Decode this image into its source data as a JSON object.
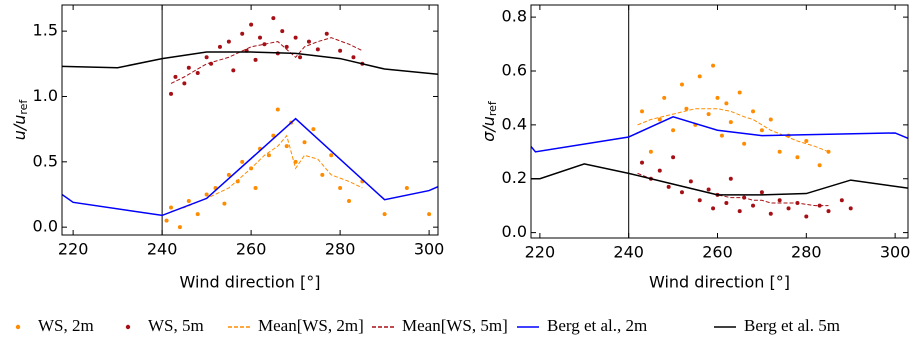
{
  "chart_data": [
    {
      "type": "scatter",
      "xlabel": "Wind direction [°]",
      "ylabel": "u/u",
      "ylabel_sub": "ref",
      "xlim": [
        217.5,
        302
      ],
      "ylim": [
        -0.06,
        1.7
      ],
      "xticks": [
        220,
        240,
        260,
        280,
        300
      ],
      "yticks": [
        {
          "value": 0,
          "label": "0.0"
        },
        {
          "value": 0.5,
          "label": "0.5"
        },
        {
          "value": 1,
          "label": "1.0"
        },
        {
          "value": 1.5,
          "label": "1.5"
        }
      ],
      "vline": 240,
      "series": [
        {
          "name": "WS, 2m",
          "color": "#ff8c00",
          "kind": "scatter",
          "x": [
            241,
            242,
            244,
            246,
            248,
            250,
            252,
            254,
            255,
            257,
            258,
            260,
            261,
            262,
            264,
            265,
            266,
            268,
            269,
            270,
            272,
            274,
            276,
            278,
            280,
            282,
            285,
            290,
            295,
            300
          ],
          "values": [
            0.05,
            0.15,
            0.0,
            0.2,
            0.1,
            0.25,
            0.3,
            0.18,
            0.4,
            0.35,
            0.5,
            0.45,
            0.3,
            0.6,
            0.55,
            0.7,
            0.9,
            0.62,
            0.8,
            0.5,
            0.65,
            0.75,
            0.4,
            0.55,
            0.3,
            0.2,
            0.35,
            0.1,
            0.3,
            0.1
          ]
        },
        {
          "name": "WS, 5m",
          "color": "#a50f15",
          "kind": "scatter",
          "x": [
            242,
            243,
            245,
            246,
            248,
            250,
            251,
            253,
            255,
            256,
            258,
            259,
            260,
            261,
            262,
            263,
            265,
            266,
            267,
            268,
            270,
            271,
            273,
            275,
            277,
            280,
            283,
            285
          ],
          "values": [
            1.02,
            1.15,
            1.1,
            1.22,
            1.18,
            1.3,
            1.25,
            1.38,
            1.42,
            1.2,
            1.48,
            1.35,
            1.55,
            1.28,
            1.45,
            1.4,
            1.6,
            1.33,
            1.5,
            1.38,
            1.45,
            1.3,
            1.42,
            1.36,
            1.48,
            1.35,
            1.3,
            1.25
          ]
        },
        {
          "name": "Mean[WS, 2m]",
          "color": "#ff8c00",
          "kind": "line",
          "dashed": true,
          "x": [
            242,
            245,
            250,
            255,
            260,
            263,
            266,
            268,
            270,
            272,
            275,
            278,
            282,
            285
          ],
          "values": [
            0.12,
            0.15,
            0.22,
            0.3,
            0.45,
            0.55,
            0.62,
            0.7,
            0.45,
            0.55,
            0.52,
            0.4,
            0.35,
            0.3
          ]
        },
        {
          "name": "Mean[WS, 5m]",
          "color": "#a50f15",
          "kind": "line",
          "dashed": true,
          "x": [
            242,
            245,
            250,
            255,
            260,
            263,
            266,
            268,
            270,
            272,
            275,
            278,
            282,
            285
          ],
          "values": [
            1.1,
            1.15,
            1.25,
            1.3,
            1.38,
            1.4,
            1.42,
            1.36,
            1.3,
            1.38,
            1.42,
            1.45,
            1.4,
            1.35
          ]
        },
        {
          "name": "Berg et al., 2m",
          "color": "#0000ff",
          "kind": "line",
          "dashed": false,
          "x": [
            217.5,
            220,
            240,
            250,
            270,
            290,
            300,
            302
          ],
          "values": [
            0.25,
            0.19,
            0.09,
            0.22,
            0.83,
            0.21,
            0.28,
            0.31
          ]
        },
        {
          "name": "Berg et al. 5m",
          "color": "#000000",
          "kind": "line",
          "dashed": false,
          "x": [
            217.5,
            230,
            240,
            250,
            260,
            270,
            280,
            290,
            302
          ],
          "values": [
            1.23,
            1.22,
            1.29,
            1.34,
            1.34,
            1.33,
            1.29,
            1.21,
            1.17
          ]
        }
      ]
    },
    {
      "type": "scatter",
      "xlabel": "Wind direction [°]",
      "ylabel": "σ/u",
      "ylabel_sub": "ref",
      "xlim": [
        218,
        302.9
      ],
      "ylim": [
        -0.02,
        0.845
      ],
      "xticks": [
        220,
        240,
        260,
        280,
        300
      ],
      "yticks": [
        {
          "value": 0,
          "label": "0.0"
        },
        0.2,
        0.4,
        0.6,
        0.8
      ],
      "vline": 240,
      "series": [
        {
          "color": "#ff8c00",
          "kind": "scatter",
          "x": [
            243,
            245,
            247,
            248,
            250,
            252,
            253,
            255,
            256,
            258,
            259,
            260,
            261,
            262,
            263,
            265,
            266,
            268,
            270,
            272,
            274,
            276,
            278,
            280,
            283,
            285
          ],
          "values": [
            0.45,
            0.3,
            0.42,
            0.5,
            0.38,
            0.55,
            0.46,
            0.4,
            0.58,
            0.44,
            0.62,
            0.5,
            0.36,
            0.48,
            0.41,
            0.52,
            0.33,
            0.45,
            0.38,
            0.42,
            0.3,
            0.36,
            0.28,
            0.34,
            0.25,
            0.3
          ]
        },
        {
          "color": "#a50f15",
          "kind": "scatter",
          "x": [
            243,
            245,
            247,
            249,
            250,
            252,
            254,
            256,
            258,
            259,
            260,
            262,
            263,
            265,
            266,
            268,
            270,
            272,
            274,
            276,
            278,
            280,
            283,
            285,
            288,
            290
          ],
          "values": [
            0.26,
            0.2,
            0.23,
            0.17,
            0.28,
            0.15,
            0.19,
            0.12,
            0.16,
            0.09,
            0.14,
            0.11,
            0.2,
            0.08,
            0.13,
            0.1,
            0.15,
            0.07,
            0.12,
            0.09,
            0.11,
            0.06,
            0.1,
            0.08,
            0.12,
            0.09
          ]
        },
        {
          "color": "#ff8c00",
          "kind": "line",
          "dashed": true,
          "x": [
            242,
            245,
            250,
            255,
            260,
            263,
            266,
            268,
            270,
            272,
            275,
            278,
            282,
            285
          ],
          "values": [
            0.4,
            0.42,
            0.44,
            0.46,
            0.46,
            0.45,
            0.43,
            0.42,
            0.4,
            0.38,
            0.36,
            0.34,
            0.32,
            0.3
          ]
        },
        {
          "color": "#a50f15",
          "kind": "line",
          "dashed": true,
          "x": [
            242,
            245,
            250,
            255,
            260,
            263,
            266,
            268,
            270,
            272,
            275,
            278,
            282,
            285
          ],
          "values": [
            0.22,
            0.2,
            0.18,
            0.16,
            0.14,
            0.13,
            0.13,
            0.12,
            0.12,
            0.11,
            0.11,
            0.11,
            0.1,
            0.1
          ]
        },
        {
          "color": "#0000ff",
          "kind": "line",
          "dashed": false,
          "x": [
            218,
            219,
            240,
            250,
            260,
            270,
            300,
            302.9
          ],
          "values": [
            0.32,
            0.3,
            0.355,
            0.43,
            0.38,
            0.36,
            0.37,
            0.35
          ]
        },
        {
          "color": "#000000",
          "kind": "line",
          "dashed": false,
          "x": [
            218,
            220,
            230,
            240,
            250,
            260,
            270,
            280,
            290,
            302.9
          ],
          "values": [
            0.2,
            0.2,
            0.255,
            0.22,
            0.18,
            0.14,
            0.14,
            0.145,
            0.195,
            0.165
          ]
        }
      ]
    }
  ]
}
